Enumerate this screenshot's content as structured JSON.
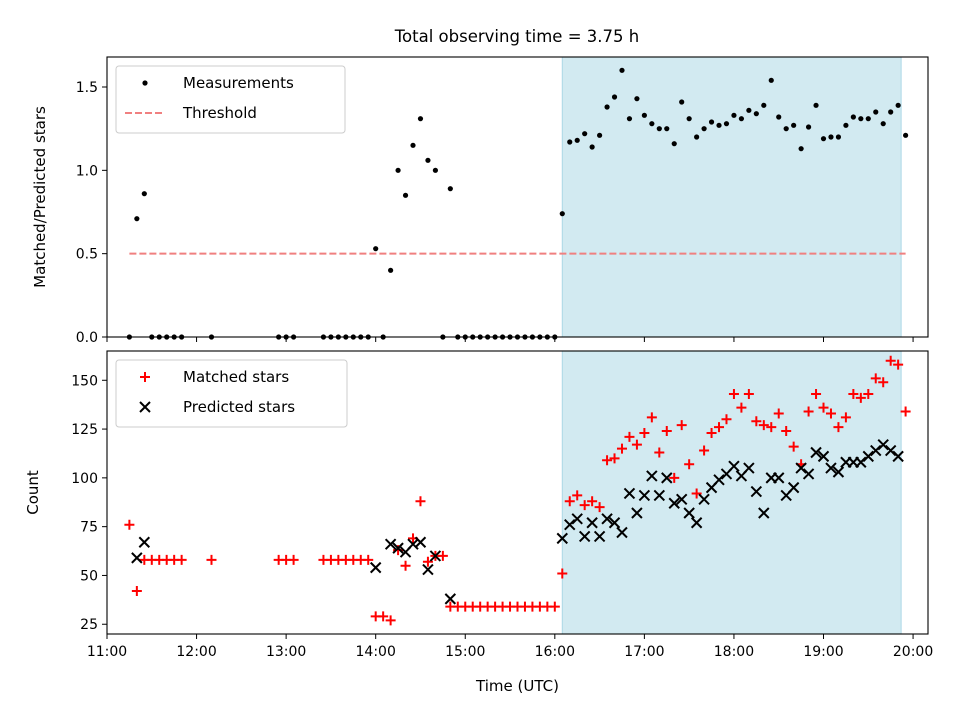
{
  "figure_title": "Total observing time = 3.75 h",
  "colors": {
    "measurement": "#000000",
    "threshold": "#f08080",
    "matched": "#ff0000",
    "predicted": "#000000",
    "highlight": "#add8e6"
  },
  "chart_data": [
    {
      "type": "scatter",
      "title": "Total observing time = 3.75 h",
      "xlabel": "",
      "ylabel": "Matched/Predicted stars",
      "xlim": [
        "11:00",
        "20:10"
      ],
      "ylim": [
        0,
        1.68
      ],
      "yticks": [
        "0.0",
        "0.5",
        "1.0",
        "1.5"
      ],
      "grid": false,
      "legend": "top-left",
      "highlight_span": [
        "16:05",
        "19:52"
      ],
      "series": [
        {
          "name": "Measurements",
          "marker": "dot",
          "points": [
            [
              "11:15",
              0.0
            ],
            [
              "11:20",
              0.71
            ],
            [
              "11:25",
              0.86
            ],
            [
              "11:30",
              0.0
            ],
            [
              "11:35",
              0.0
            ],
            [
              "11:40",
              0.0
            ],
            [
              "11:45",
              0.0
            ],
            [
              "11:50",
              0.0
            ],
            [
              "12:10",
              0.0
            ],
            [
              "12:55",
              0.0
            ],
            [
              "13:00",
              0.0
            ],
            [
              "13:05",
              0.0
            ],
            [
              "13:25",
              0.0
            ],
            [
              "13:30",
              0.0
            ],
            [
              "13:35",
              0.0
            ],
            [
              "13:40",
              0.0
            ],
            [
              "13:45",
              0.0
            ],
            [
              "13:50",
              0.0
            ],
            [
              "13:55",
              0.0
            ],
            [
              "14:00",
              0.53
            ],
            [
              "14:05",
              0.0
            ],
            [
              "14:10",
              0.4
            ],
            [
              "14:15",
              1.0
            ],
            [
              "14:20",
              0.85
            ],
            [
              "14:25",
              1.15
            ],
            [
              "14:30",
              1.31
            ],
            [
              "14:35",
              1.06
            ],
            [
              "14:40",
              1.0
            ],
            [
              "14:45",
              0.0
            ],
            [
              "14:50",
              0.89
            ],
            [
              "14:55",
              0.0
            ],
            [
              "15:00",
              0.0
            ],
            [
              "15:05",
              0.0
            ],
            [
              "15:10",
              0.0
            ],
            [
              "15:15",
              0.0
            ],
            [
              "15:20",
              0.0
            ],
            [
              "15:25",
              0.0
            ],
            [
              "15:30",
              0.0
            ],
            [
              "15:35",
              0.0
            ],
            [
              "15:40",
              0.0
            ],
            [
              "15:45",
              0.0
            ],
            [
              "15:50",
              0.0
            ],
            [
              "15:55",
              0.0
            ],
            [
              "16:00",
              0.0
            ],
            [
              "16:05",
              0.74
            ],
            [
              "16:10",
              1.17
            ],
            [
              "16:15",
              1.18
            ],
            [
              "16:20",
              1.22
            ],
            [
              "16:25",
              1.14
            ],
            [
              "16:30",
              1.21
            ],
            [
              "16:35",
              1.38
            ],
            [
              "16:40",
              1.44
            ],
            [
              "16:45",
              1.6
            ],
            [
              "16:50",
              1.31
            ],
            [
              "16:55",
              1.43
            ],
            [
              "17:00",
              1.33
            ],
            [
              "17:05",
              1.28
            ],
            [
              "17:10",
              1.25
            ],
            [
              "17:15",
              1.25
            ],
            [
              "17:20",
              1.16
            ],
            [
              "17:25",
              1.41
            ],
            [
              "17:30",
              1.31
            ],
            [
              "17:35",
              1.2
            ],
            [
              "17:40",
              1.25
            ],
            [
              "17:45",
              1.29
            ],
            [
              "17:50",
              1.27
            ],
            [
              "17:55",
              1.28
            ],
            [
              "18:00",
              1.33
            ],
            [
              "18:05",
              1.31
            ],
            [
              "18:10",
              1.36
            ],
            [
              "18:15",
              1.34
            ],
            [
              "18:20",
              1.39
            ],
            [
              "18:25",
              1.54
            ],
            [
              "18:30",
              1.32
            ],
            [
              "18:35",
              1.25
            ],
            [
              "18:40",
              1.27
            ],
            [
              "18:45",
              1.13
            ],
            [
              "18:50",
              1.26
            ],
            [
              "18:55",
              1.39
            ],
            [
              "19:00",
              1.19
            ],
            [
              "19:05",
              1.2
            ],
            [
              "19:10",
              1.2
            ],
            [
              "19:15",
              1.27
            ],
            [
              "19:20",
              1.32
            ],
            [
              "19:25",
              1.31
            ],
            [
              "19:30",
              1.31
            ],
            [
              "19:35",
              1.35
            ],
            [
              "19:40",
              1.28
            ],
            [
              "19:45",
              1.35
            ],
            [
              "19:50",
              1.39
            ],
            [
              "19:55",
              1.21
            ]
          ]
        },
        {
          "name": "Threshold",
          "marker": "dashed-line",
          "points": [
            [
              "11:15",
              0.5
            ],
            [
              "19:55",
              0.5
            ]
          ]
        }
      ]
    },
    {
      "type": "scatter",
      "title": "",
      "xlabel": "Time (UTC)",
      "ylabel": "Count",
      "xlim": [
        "11:00",
        "20:10"
      ],
      "ylim": [
        20,
        165
      ],
      "yticks": [
        "25",
        "50",
        "75",
        "100",
        "125",
        "150"
      ],
      "xticks": [
        "11:00",
        "12:00",
        "13:00",
        "14:00",
        "15:00",
        "16:00",
        "17:00",
        "18:00",
        "19:00",
        "20:00"
      ],
      "grid": false,
      "legend": "top-left",
      "highlight_span": [
        "16:05",
        "19:52"
      ],
      "series": [
        {
          "name": "Matched stars",
          "marker": "plus",
          "points": [
            [
              "11:15",
              76
            ],
            [
              "11:20",
              42
            ],
            [
              "11:25",
              58
            ],
            [
              "11:30",
              58
            ],
            [
              "11:35",
              58
            ],
            [
              "11:40",
              58
            ],
            [
              "11:45",
              58
            ],
            [
              "11:50",
              58
            ],
            [
              "12:10",
              58
            ],
            [
              "12:55",
              58
            ],
            [
              "13:00",
              58
            ],
            [
              "13:05",
              58
            ],
            [
              "13:25",
              58
            ],
            [
              "13:30",
              58
            ],
            [
              "13:35",
              58
            ],
            [
              "13:40",
              58
            ],
            [
              "13:45",
              58
            ],
            [
              "13:50",
              58
            ],
            [
              "13:55",
              58
            ],
            [
              "14:00",
              29
            ],
            [
              "14:05",
              29
            ],
            [
              "14:10",
              27
            ],
            [
              "14:15",
              63
            ],
            [
              "14:20",
              55
            ],
            [
              "14:25",
              69
            ],
            [
              "14:30",
              88
            ],
            [
              "14:35",
              57
            ],
            [
              "14:40",
              60
            ],
            [
              "14:45",
              60
            ],
            [
              "14:50",
              34
            ],
            [
              "14:55",
              34
            ],
            [
              "15:00",
              34
            ],
            [
              "15:05",
              34
            ],
            [
              "15:10",
              34
            ],
            [
              "15:15",
              34
            ],
            [
              "15:20",
              34
            ],
            [
              "15:25",
              34
            ],
            [
              "15:30",
              34
            ],
            [
              "15:35",
              34
            ],
            [
              "15:40",
              34
            ],
            [
              "15:45",
              34
            ],
            [
              "15:50",
              34
            ],
            [
              "15:55",
              34
            ],
            [
              "16:00",
              34
            ],
            [
              "16:05",
              51
            ],
            [
              "16:10",
              88
            ],
            [
              "16:15",
              91
            ],
            [
              "16:20",
              86
            ],
            [
              "16:25",
              88
            ],
            [
              "16:30",
              85
            ],
            [
              "16:35",
              109
            ],
            [
              "16:40",
              110
            ],
            [
              "16:45",
              115
            ],
            [
              "16:50",
              121
            ],
            [
              "16:55",
              117
            ],
            [
              "17:00",
              123
            ],
            [
              "17:05",
              131
            ],
            [
              "17:10",
              113
            ],
            [
              "17:15",
              124
            ],
            [
              "17:20",
              100
            ],
            [
              "17:25",
              127
            ],
            [
              "17:30",
              107
            ],
            [
              "17:35",
              92
            ],
            [
              "17:40",
              114
            ],
            [
              "17:45",
              123
            ],
            [
              "17:50",
              126
            ],
            [
              "17:55",
              130
            ],
            [
              "18:00",
              143
            ],
            [
              "18:05",
              136
            ],
            [
              "18:10",
              143
            ],
            [
              "18:15",
              129
            ],
            [
              "18:20",
              127
            ],
            [
              "18:25",
              126
            ],
            [
              "18:30",
              133
            ],
            [
              "18:35",
              124
            ],
            [
              "18:40",
              116
            ],
            [
              "18:45",
              107
            ],
            [
              "18:50",
              134
            ],
            [
              "18:55",
              143
            ],
            [
              "19:00",
              136
            ],
            [
              "19:05",
              133
            ],
            [
              "19:10",
              126
            ],
            [
              "19:15",
              131
            ],
            [
              "19:20",
              143
            ],
            [
              "19:25",
              141
            ],
            [
              "19:30",
              143
            ],
            [
              "19:35",
              151
            ],
            [
              "19:40",
              149
            ],
            [
              "19:45",
              160
            ],
            [
              "19:50",
              158
            ],
            [
              "19:55",
              134
            ]
          ]
        },
        {
          "name": "Predicted stars",
          "marker": "x",
          "points": [
            [
              "11:20",
              59
            ],
            [
              "11:25",
              67
            ],
            [
              "14:00",
              54
            ],
            [
              "14:10",
              66
            ],
            [
              "14:15",
              64
            ],
            [
              "14:20",
              62
            ],
            [
              "14:25",
              66
            ],
            [
              "14:30",
              67
            ],
            [
              "14:35",
              53
            ],
            [
              "14:40",
              60
            ],
            [
              "14:50",
              38
            ],
            [
              "16:05",
              69
            ],
            [
              "16:10",
              76
            ],
            [
              "16:15",
              79
            ],
            [
              "16:20",
              70
            ],
            [
              "16:25",
              77
            ],
            [
              "16:30",
              70
            ],
            [
              "16:35",
              79
            ],
            [
              "16:40",
              77
            ],
            [
              "16:45",
              72
            ],
            [
              "16:50",
              92
            ],
            [
              "16:55",
              82
            ],
            [
              "17:00",
              91
            ],
            [
              "17:05",
              101
            ],
            [
              "17:10",
              91
            ],
            [
              "17:15",
              100
            ],
            [
              "17:20",
              87
            ],
            [
              "17:25",
              89
            ],
            [
              "17:30",
              82
            ],
            [
              "17:35",
              77
            ],
            [
              "17:40",
              89
            ],
            [
              "17:45",
              95
            ],
            [
              "17:50",
              99
            ],
            [
              "17:55",
              102
            ],
            [
              "18:00",
              106
            ],
            [
              "18:05",
              101
            ],
            [
              "18:10",
              105
            ],
            [
              "18:15",
              93
            ],
            [
              "18:20",
              82
            ],
            [
              "18:25",
              100
            ],
            [
              "18:30",
              100
            ],
            [
              "18:35",
              91
            ],
            [
              "18:40",
              95
            ],
            [
              "18:45",
              105
            ],
            [
              "18:50",
              102
            ],
            [
              "18:55",
              113
            ],
            [
              "19:00",
              111
            ],
            [
              "19:05",
              105
            ],
            [
              "19:10",
              103
            ],
            [
              "19:15",
              108
            ],
            [
              "19:20",
              108
            ],
            [
              "19:25",
              108
            ],
            [
              "19:30",
              111
            ],
            [
              "19:35",
              114
            ],
            [
              "19:40",
              117
            ],
            [
              "19:45",
              114
            ],
            [
              "19:50",
              111
            ]
          ]
        }
      ]
    }
  ]
}
